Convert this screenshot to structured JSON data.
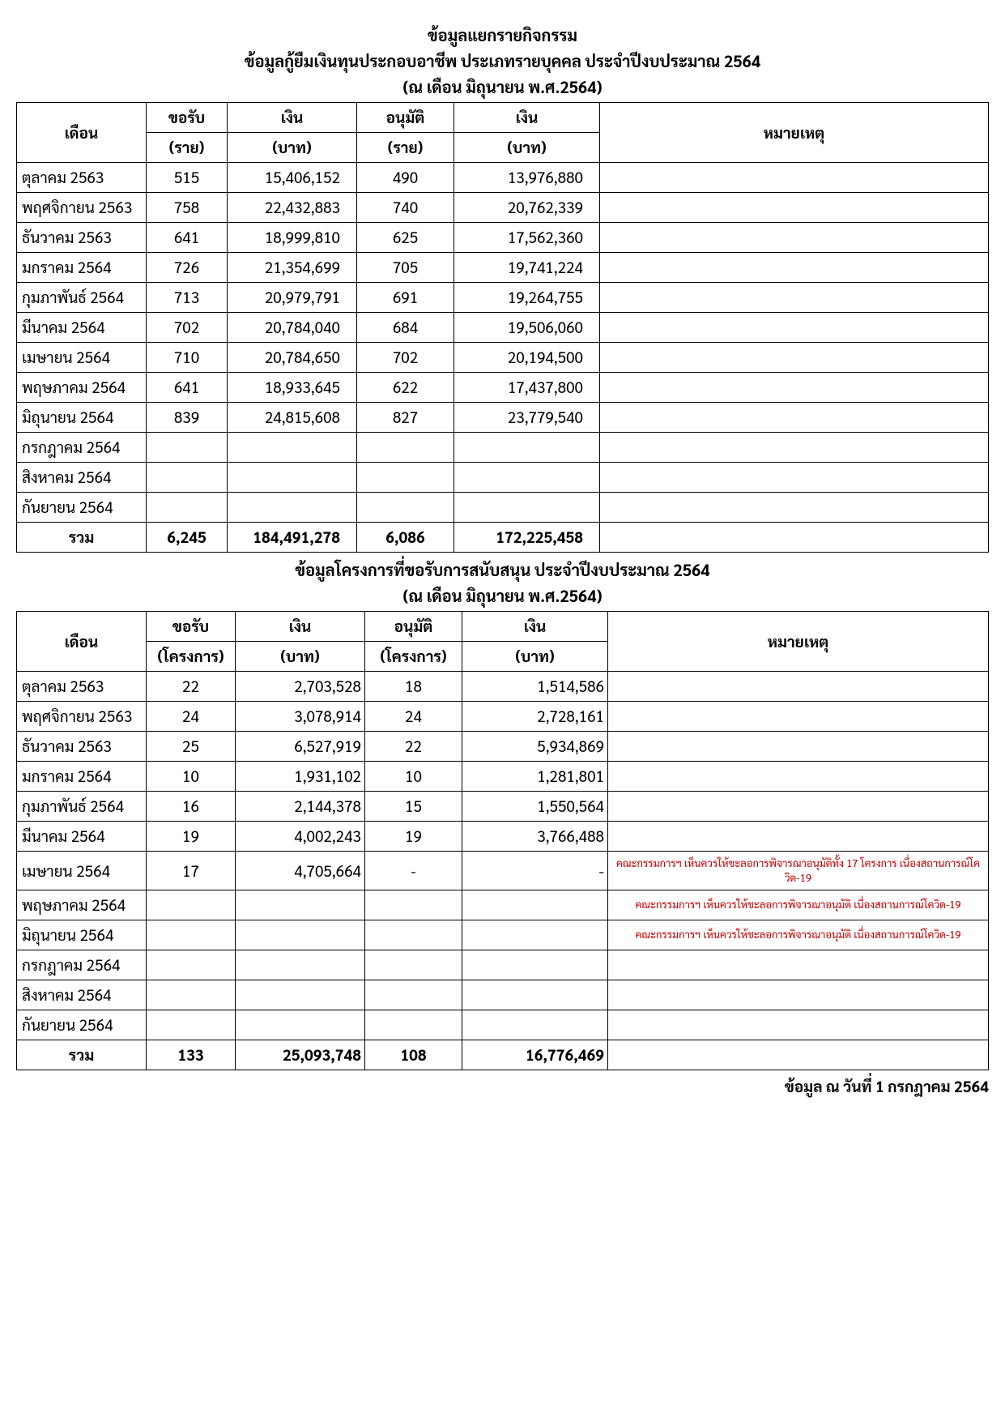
{
  "header": {
    "line1": "ข้อมูลแยกรายกิจกรรม",
    "line2": "ข้อมูลกู้ยืมเงินทุนประกอบอาชีพ ประเภทรายบุคคล ประจำปีงบประมาณ 2564",
    "line3": "(ณ เดือน มิถุนายน พ.ศ.2564)"
  },
  "table1": {
    "headers": {
      "month": "เดือน",
      "req_count": "ขอรับ",
      "req_count_unit": "(ราย)",
      "req_amount": "เงิน",
      "req_amount_unit": "(บาท)",
      "appr_count": "อนุมัติ",
      "appr_count_unit": "(ราย)",
      "appr_amount": "เงิน",
      "appr_amount_unit": "(บาท)",
      "notes": "หมายเหตุ"
    },
    "rows": [
      {
        "month": "ตุลาคม 2563",
        "req_count": "515",
        "req_amount": "15,406,152",
        "appr_count": "490",
        "appr_amount": "13,976,880",
        "notes": ""
      },
      {
        "month": "พฤศจิกายน 2563",
        "req_count": "758",
        "req_amount": "22,432,883",
        "appr_count": "740",
        "appr_amount": "20,762,339",
        "notes": ""
      },
      {
        "month": "ธันวาคม 2563",
        "req_count": "641",
        "req_amount": "18,999,810",
        "appr_count": "625",
        "appr_amount": "17,562,360",
        "notes": ""
      },
      {
        "month": "มกราคม 2564",
        "req_count": "726",
        "req_amount": "21,354,699",
        "appr_count": "705",
        "appr_amount": "19,741,224",
        "notes": ""
      },
      {
        "month": "กุมภาพันธ์ 2564",
        "req_count": "713",
        "req_amount": "20,979,791",
        "appr_count": "691",
        "appr_amount": "19,264,755",
        "notes": ""
      },
      {
        "month": "มีนาคม 2564",
        "req_count": "702",
        "req_amount": "20,784,040",
        "appr_count": "684",
        "appr_amount": "19,506,060",
        "notes": ""
      },
      {
        "month": "เมษายน 2564",
        "req_count": "710",
        "req_amount": "20,784,650",
        "appr_count": "702",
        "appr_amount": "20,194,500",
        "notes": ""
      },
      {
        "month": "พฤษภาคม 2564",
        "req_count": "641",
        "req_amount": "18,933,645",
        "appr_count": "622",
        "appr_amount": "17,437,800",
        "notes": ""
      },
      {
        "month": "มิถุนายน 2564",
        "req_count": "839",
        "req_amount": "24,815,608",
        "appr_count": "827",
        "appr_amount": "23,779,540",
        "notes": ""
      },
      {
        "month": "กรกฎาคม 2564",
        "req_count": "",
        "req_amount": "",
        "appr_count": "",
        "appr_amount": "",
        "notes": ""
      },
      {
        "month": "สิงหาคม 2564",
        "req_count": "",
        "req_amount": "",
        "appr_count": "",
        "appr_amount": "",
        "notes": ""
      },
      {
        "month": "กันยายน 2564",
        "req_count": "",
        "req_amount": "",
        "appr_count": "",
        "appr_amount": "",
        "notes": ""
      }
    ],
    "total": {
      "label": "รวม",
      "req_count": "6,245",
      "req_amount": "184,491,278",
      "appr_count": "6,086",
      "appr_amount": "172,225,458",
      "notes": ""
    }
  },
  "header2": {
    "line1": "ข้อมูลโครงการที่ขอรับการสนับสนุน ประจำปีงบประมาณ 2564",
    "line2": "(ณ เดือน มิถุนายน พ.ศ.2564)"
  },
  "table2": {
    "headers": {
      "month": "เดือน",
      "req_count": "ขอรับ",
      "req_count_unit": "(โครงการ)",
      "req_amount": "เงิน",
      "req_amount_unit": "(บาท)",
      "appr_count": "อนุมัติ",
      "appr_count_unit": "(โครงการ)",
      "appr_amount": "เงิน",
      "appr_amount_unit": "(บาท)",
      "notes": "หมายเหตุ"
    },
    "rows": [
      {
        "month": "ตุลาคม 2563",
        "req_count": "22",
        "req_amount": "2,703,528",
        "appr_count": "18",
        "appr_amount": "1,514,586",
        "notes": ""
      },
      {
        "month": "พฤศจิกายน 2563",
        "req_count": "24",
        "req_amount": "3,078,914",
        "appr_count": "24",
        "appr_amount": "2,728,161",
        "notes": ""
      },
      {
        "month": "ธันวาคม 2563",
        "req_count": "25",
        "req_amount": "6,527,919",
        "appr_count": "22",
        "appr_amount": "5,934,869",
        "notes": ""
      },
      {
        "month": "มกราคม 2564",
        "req_count": "10",
        "req_amount": "1,931,102",
        "appr_count": "10",
        "appr_amount": "1,281,801",
        "notes": ""
      },
      {
        "month": "กุมภาพันธ์ 2564",
        "req_count": "16",
        "req_amount": "2,144,378",
        "appr_count": "15",
        "appr_amount": "1,550,564",
        "notes": ""
      },
      {
        "month": "มีนาคม 2564",
        "req_count": "19",
        "req_amount": "4,002,243",
        "appr_count": "19",
        "appr_amount": "3,766,488",
        "notes": ""
      },
      {
        "month": "เมษายน 2564",
        "req_count": "17",
        "req_amount": "4,705,664",
        "appr_count": "-",
        "appr_amount": "-",
        "notes": "คณะกรรมการฯ เห็นควรให้ชะลอการพิจารณาอนุมัติทั้ง 17 โครงการ เนื่องสถานการณ์โควิด-19"
      },
      {
        "month": "พฤษภาคม 2564",
        "req_count": "",
        "req_amount": "",
        "appr_count": "",
        "appr_amount": "",
        "notes": "คณะกรรมการฯ เห็นควรให้ชะลอการพิจารณาอนุมัติ เนื่องสถานการณ์โควิด-19"
      },
      {
        "month": "มิถุนายน 2564",
        "req_count": "",
        "req_amount": "",
        "appr_count": "",
        "appr_amount": "",
        "notes": "คณะกรรมการฯ เห็นควรให้ชะลอการพิจารณาอนุมัติ เนื่องสถานการณ์โควิด-19"
      },
      {
        "month": "กรกฎาคม 2564",
        "req_count": "",
        "req_amount": "",
        "appr_count": "",
        "appr_amount": "",
        "notes": ""
      },
      {
        "month": "สิงหาคม 2564",
        "req_count": "",
        "req_amount": "",
        "appr_count": "",
        "appr_amount": "",
        "notes": ""
      },
      {
        "month": "กันยายน 2564",
        "req_count": "",
        "req_amount": "",
        "appr_count": "",
        "appr_amount": "",
        "notes": ""
      }
    ],
    "total": {
      "label": "รวม",
      "req_count": "133",
      "req_amount": "25,093,748",
      "appr_count": "108",
      "appr_amount": "16,776,469",
      "notes": ""
    }
  },
  "footer": {
    "text": "ข้อมูล ณ วันที่ 1 กรกฎาคม 2564"
  },
  "styling": {
    "text_color": "#000000",
    "notes_color": "#c00000",
    "border_color": "#000000",
    "background": "#ffffff",
    "title_fontsize": 20,
    "cell_fontsize": 19,
    "notes_fontsize": 13
  }
}
